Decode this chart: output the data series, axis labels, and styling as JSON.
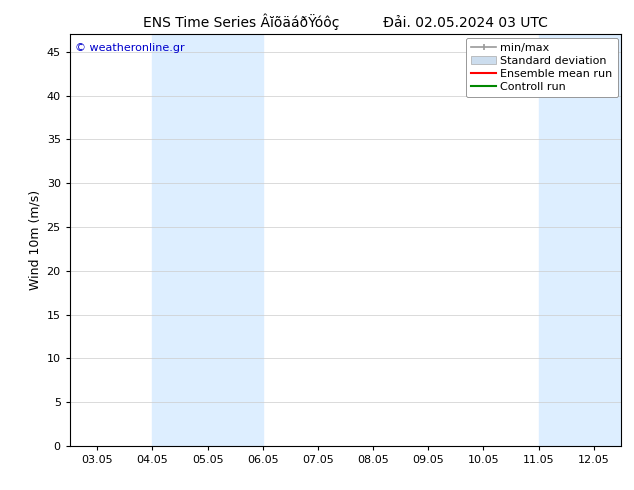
{
  "title": "ENS Time Series ÂĭõäáðŸóôç          Đải. 02.05.2024 03 UTC",
  "ylabel": "Wind 10m (m/s)",
  "ylim": [
    0,
    47
  ],
  "yticks": [
    0,
    5,
    10,
    15,
    20,
    25,
    30,
    35,
    40,
    45
  ],
  "xtick_labels": [
    "03.05",
    "04.05",
    "05.05",
    "06.05",
    "07.05",
    "08.05",
    "09.05",
    "10.05",
    "11.05",
    "12.05"
  ],
  "shade_color": "#ddeeff",
  "watermark_text": "© weatheronline.gr",
  "watermark_color": "#0000cc",
  "bg_color": "#ffffff",
  "title_fontsize": 10,
  "tick_fontsize": 8,
  "ylabel_fontsize": 9,
  "legend_fontsize": 8
}
